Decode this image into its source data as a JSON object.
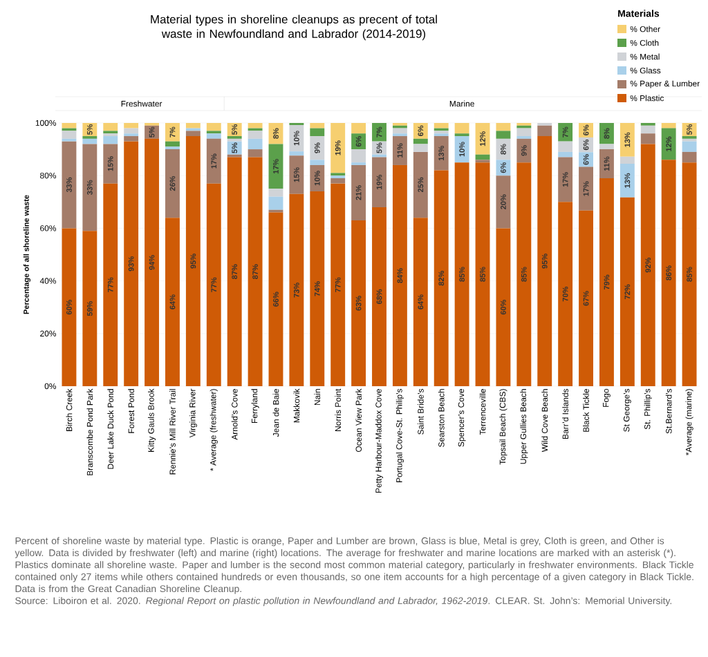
{
  "chart_data": {
    "type": "bar",
    "stacked": true,
    "title": "Material types in shoreline cleanups as precent of total waste in Newfoundland and Labrador (2014-2019)",
    "ylabel": "Percentage of all shoreline waste",
    "legend_title": "Materials",
    "legend": "top right",
    "grid": "y",
    "categories": [
      "Birch Creek",
      "Branscombe Pond Park",
      "Deer Lake Duck Pond",
      "Forest Pond",
      "Kitty Gauls Brook",
      "Rennie’s Mill River Trail",
      "Virginia River",
      "* Average (freshwater)",
      "Arnold’s Cove",
      "Ferryland",
      "Jean de Baie",
      "Makkovik",
      "Nain",
      "Norris Point",
      "Ocean View Park",
      "Petty Harbour-Maddox Cove",
      "Portugal Cove-St. Philip’s",
      "Saint Bride’s",
      "Searston Beach",
      "Spencer’s Cove",
      "Terrenceville",
      "Topsail Beach (CBS)",
      "Upper Gullies Beach",
      "Wild Cove Beach",
      "Barr’d Islands",
      "Black Tickle",
      "Fogo",
      "St George’s",
      "St. Phillip’s",
      "St.Bernard’s",
      "*Average (marine)"
    ],
    "ylim": [
      0,
      100
    ],
    "yticks": [
      {
        "value": 0,
        "label": "0%"
      },
      {
        "value": 20,
        "label": "20%"
      },
      {
        "value": 40,
        "label": "40%"
      },
      {
        "value": 60,
        "label": "60%"
      },
      {
        "value": 80,
        "label": "80%"
      },
      {
        "value": 100,
        "label": "100%"
      }
    ],
    "series": [
      {
        "name": "% Plastic",
        "color": "#cf5b06",
        "values": [
          60,
          59,
          77,
          93,
          94,
          64,
          95,
          77,
          87,
          87,
          66,
          73,
          74,
          77,
          63,
          68,
          84,
          64,
          82,
          85,
          85,
          60,
          85,
          95,
          70,
          66.7,
          79,
          71.7,
          92,
          86,
          85
        ],
        "value_labels": [
          "60%",
          "59%",
          "77%",
          "93%",
          "94%",
          "64%",
          "95%",
          "77%",
          "87%",
          "87%",
          "66%",
          "73%",
          "74%",
          "77%",
          "63%",
          "68%",
          "84%",
          "64%",
          "82%",
          "85%",
          "85%",
          "60%",
          "85%",
          "95%",
          "70%",
          "67%",
          "79%",
          "72%",
          "92%",
          "86%",
          "85%"
        ]
      },
      {
        "name": "% Paper & Lumber",
        "color": "#a47c69",
        "values": [
          33,
          33,
          15,
          2,
          5,
          26,
          2,
          17,
          1,
          3,
          1,
          14.6,
          10,
          2,
          21,
          19,
          11,
          25,
          13,
          0,
          1,
          20,
          9,
          4,
          17,
          16.6,
          11,
          0,
          4,
          0,
          4
        ],
        "value_labels": [
          "33%",
          "33%",
          "15%",
          null,
          "5%",
          "26%",
          null,
          "17%",
          null,
          null,
          null,
          "15%",
          "10%",
          null,
          "21%",
          "19%",
          "11%",
          "25%",
          "13%",
          null,
          null,
          "20%",
          "9%",
          null,
          "17%",
          "17%",
          "11%",
          null,
          null,
          null,
          null
        ]
      },
      {
        "name": "% Glass",
        "color": "#a9d0ea",
        "values": [
          1,
          2,
          3,
          1,
          0,
          1,
          1,
          2,
          5,
          4,
          5,
          1.6,
          2,
          1,
          1,
          1,
          1,
          0,
          1,
          10,
          0,
          6,
          1,
          0,
          2,
          5.6,
          0,
          12.8,
          0,
          0,
          4
        ],
        "value_labels": [
          null,
          null,
          null,
          null,
          null,
          null,
          null,
          null,
          "5%",
          null,
          null,
          null,
          null,
          null,
          null,
          null,
          null,
          null,
          null,
          "10%",
          null,
          "6%",
          null,
          null,
          null,
          "6%",
          null,
          "13%",
          null,
          null,
          null
        ]
      },
      {
        "name": "% Metal",
        "color": "#d0d3d7",
        "values": [
          3,
          0,
          1,
          2,
          0,
          0,
          0,
          0,
          1,
          3,
          3,
          10,
          9,
          0,
          5,
          5,
          2,
          3,
          1,
          0,
          0,
          8,
          3,
          1,
          4,
          5.6,
          2,
          2.7,
          3,
          0,
          1
        ],
        "value_labels": [
          null,
          null,
          null,
          null,
          null,
          null,
          null,
          null,
          null,
          null,
          null,
          "10%",
          "9%",
          null,
          null,
          "5%",
          null,
          null,
          null,
          null,
          null,
          "8%",
          null,
          null,
          null,
          "6%",
          null,
          null,
          null,
          null,
          null
        ]
      },
      {
        "name": "% Cloth",
        "color": "#5ba04b",
        "values": [
          1,
          1,
          1,
          0,
          0,
          2,
          0,
          1,
          1,
          1,
          17,
          0.8,
          3,
          1,
          6,
          7,
          1,
          2,
          1,
          1,
          2,
          3,
          1,
          0,
          7,
          0,
          8,
          0,
          1,
          12,
          1
        ],
        "value_labels": [
          null,
          null,
          null,
          null,
          null,
          null,
          null,
          null,
          null,
          null,
          "17%",
          null,
          null,
          null,
          "6%",
          "7%",
          null,
          null,
          null,
          null,
          null,
          null,
          null,
          null,
          "7%",
          null,
          "8%",
          null,
          null,
          "12%",
          null
        ]
      },
      {
        "name": "% Other",
        "color": "#f6cf70",
        "values": [
          2,
          5,
          3,
          2,
          1,
          7,
          2,
          3,
          5,
          2,
          8,
          0,
          2,
          19,
          4,
          0,
          1,
          6,
          2,
          4,
          12,
          3,
          1,
          0,
          0,
          5.5,
          0,
          12.8,
          0,
          2,
          5
        ],
        "value_labels": [
          null,
          "5%",
          null,
          null,
          null,
          "7%",
          null,
          null,
          "5%",
          null,
          "8%",
          null,
          null,
          "19%",
          null,
          null,
          null,
          "6%",
          null,
          null,
          "12%",
          null,
          null,
          null,
          null,
          "6%",
          null,
          "13%",
          null,
          null,
          "5%"
        ]
      }
    ],
    "annotations": [
      "Freshwater",
      "Marine",
      "Percent of shoreline waste by material type. Plastic is orange, Paper and Lumber are brown, Glass is blue, Metal is grey, Cloth is green, and Other is yellow. Data is divided by freshwater (left) and marine (right) locations. The average for freshwater and marine locations are marked with an asterisk (*). Plastics dominate all shoreline waste. Paper and lumber is the second most common material category, particularly in freshwater environments. Black Tickle contained only 27 items while others contained hundreds or even thousands, so one item accounts for a high percentage of a given category in Black Tickle. Data is from the Great Canadian Shoreline Cleanup.",
      "Source: Liboiron et al. 2020. *Regional Report on plastic pollution in Newfoundland and Labrador, 1962-2019*. CLEAR. St. John’s: Memorial University."
    ]
  }
}
